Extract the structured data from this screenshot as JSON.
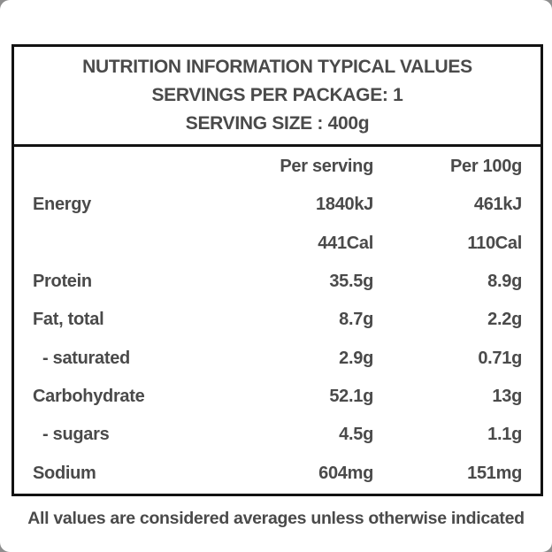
{
  "header": {
    "title": "NUTRITION INFORMATION TYPICAL VALUES",
    "servings_line": "SERVINGS PER PACKAGE: 1",
    "serving_size_line": "SERVING SIZE : 400g"
  },
  "table": {
    "col_per_serving": "Per serving",
    "col_per_100g": "Per 100g",
    "rows": [
      {
        "nutrient": "Energy",
        "per_serving": "1840kJ",
        "per_100g": "461kJ",
        "indent": false
      },
      {
        "nutrient": "",
        "per_serving": "441Cal",
        "per_100g": "110Cal",
        "indent": false
      },
      {
        "nutrient": "Protein",
        "per_serving": "35.5g",
        "per_100g": "8.9g",
        "indent": false
      },
      {
        "nutrient": "Fat, total",
        "per_serving": "8.7g",
        "per_100g": "2.2g",
        "indent": false
      },
      {
        "nutrient": "- saturated",
        "per_serving": "2.9g",
        "per_100g": "0.71g",
        "indent": true
      },
      {
        "nutrient": "Carbohydrate",
        "per_serving": "52.1g",
        "per_100g": "13g",
        "indent": false
      },
      {
        "nutrient": "- sugars",
        "per_serving": "4.5g",
        "per_100g": "1.1g",
        "indent": true
      },
      {
        "nutrient": "Sodium",
        "per_serving": "604mg",
        "per_100g": "151mg",
        "indent": false
      }
    ]
  },
  "footnote": "All values are considered averages unless otherwise indicated",
  "colors": {
    "text": "#4a4a4a",
    "border": "#121212",
    "card_background": "#ffffff",
    "corner_background": "#8e8e8e"
  }
}
